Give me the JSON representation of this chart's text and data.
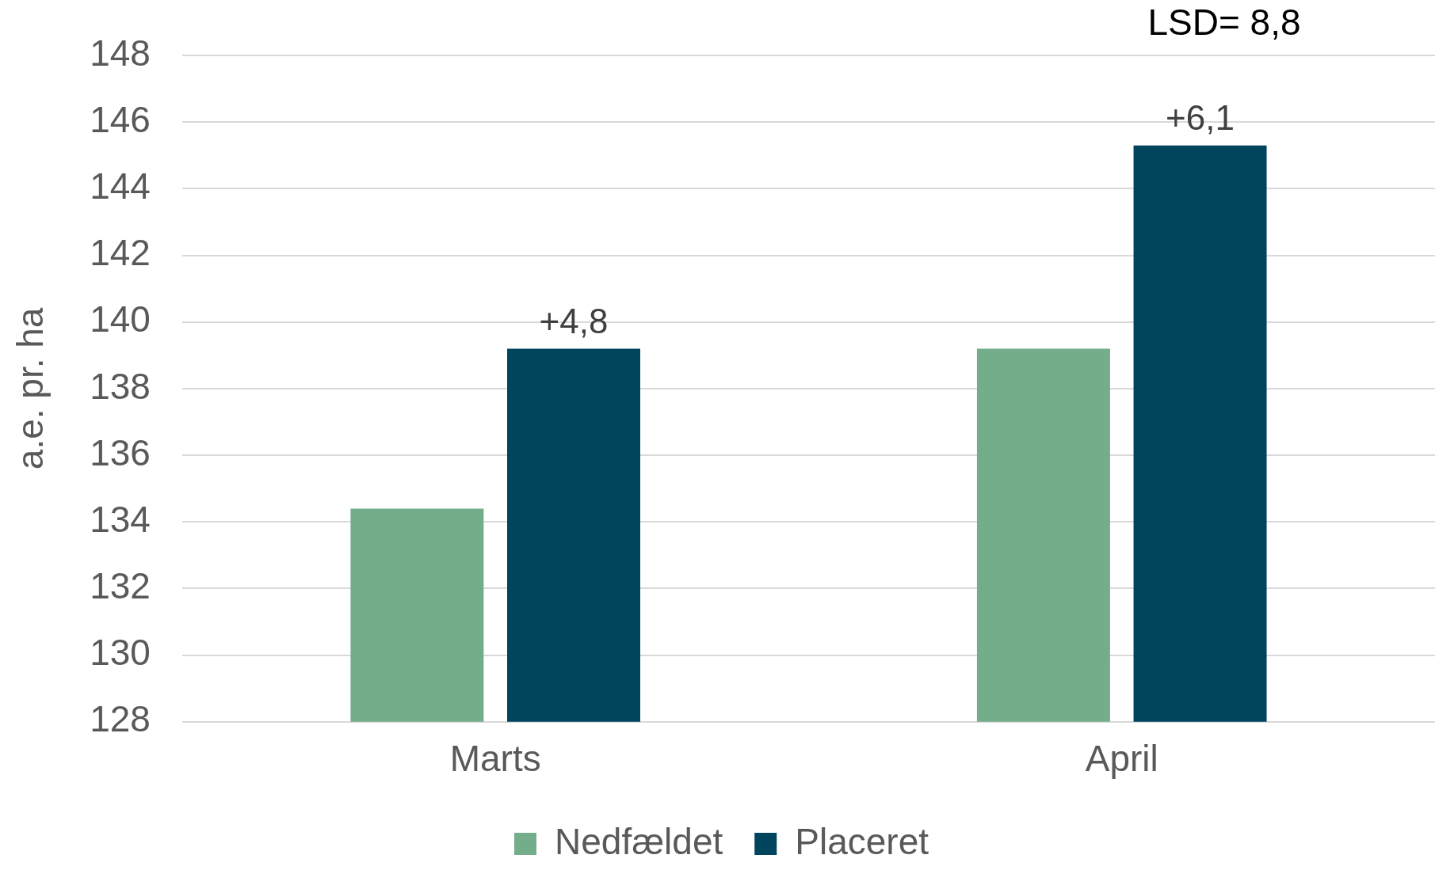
{
  "chart_data": {
    "type": "bar",
    "ylabel": "a.e. pr. ha",
    "categories": [
      "Marts",
      "April"
    ],
    "series": [
      {
        "name": "Nedfældet",
        "color": "#73ad8a",
        "values": [
          134.4,
          139.2
        ]
      },
      {
        "name": "Placeret",
        "color": "#00445e",
        "values": [
          139.2,
          145.3
        ]
      }
    ],
    "ylim": [
      128,
      148
    ],
    "yticks": [
      128,
      130,
      132,
      134,
      136,
      138,
      140,
      142,
      144,
      146,
      148
    ],
    "grid": "y",
    "legend": "bottom",
    "annotations": [
      "+4,8",
      "+6,1",
      "LSD= 8,8"
    ]
  }
}
